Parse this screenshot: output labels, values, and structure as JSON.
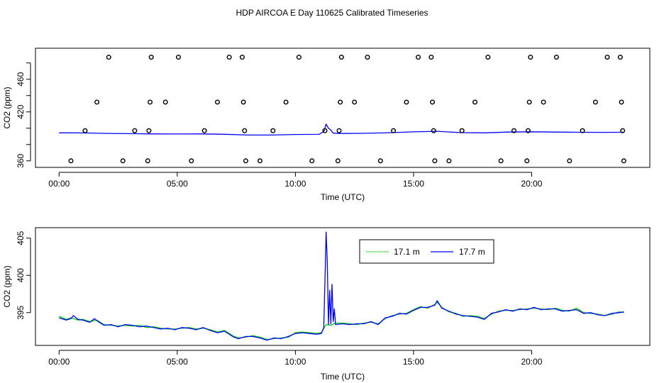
{
  "title": "HDP AIRCOA E  Day 110625  Calibrated Timeseries",
  "chart_data": [
    {
      "type": "scatter",
      "ylabel": "CO2 (ppm)",
      "xlabel": "Time (UTC)",
      "xlim": [
        -1,
        25
      ],
      "ylim": [
        352,
        498
      ],
      "x_ticks": [
        0,
        5,
        10,
        15,
        20
      ],
      "x_tick_labels": [
        "00:00",
        "05:00",
        "10:00",
        "15:00",
        "20:00"
      ],
      "y_ticks": [
        360,
        380,
        400,
        420,
        440,
        460,
        480
      ],
      "y_tick_labels": [
        "360",
        "",
        "",
        "420",
        "",
        "460",
        ""
      ],
      "calibration_points": [
        {
          "x": 0.5,
          "y": 360
        },
        {
          "x": 1.1,
          "y": 397
        },
        {
          "x": 1.6,
          "y": 432
        },
        {
          "x": 2.1,
          "y": 487
        },
        {
          "x": 2.7,
          "y": 360
        },
        {
          "x": 3.2,
          "y": 397
        },
        {
          "x": 3.75,
          "y": 360
        },
        {
          "x": 3.8,
          "y": 397
        },
        {
          "x": 3.85,
          "y": 432
        },
        {
          "x": 3.9,
          "y": 487
        },
        {
          "x": 4.5,
          "y": 432
        },
        {
          "x": 5.05,
          "y": 487
        },
        {
          "x": 5.6,
          "y": 360
        },
        {
          "x": 6.15,
          "y": 397
        },
        {
          "x": 6.7,
          "y": 432
        },
        {
          "x": 7.2,
          "y": 487
        },
        {
          "x": 7.75,
          "y": 487
        },
        {
          "x": 7.8,
          "y": 432
        },
        {
          "x": 7.85,
          "y": 397
        },
        {
          "x": 7.9,
          "y": 360
        },
        {
          "x": 8.5,
          "y": 360
        },
        {
          "x": 9.05,
          "y": 397
        },
        {
          "x": 9.6,
          "y": 432
        },
        {
          "x": 10.15,
          "y": 487
        },
        {
          "x": 10.7,
          "y": 360
        },
        {
          "x": 11.25,
          "y": 397
        },
        {
          "x": 11.8,
          "y": 360
        },
        {
          "x": 11.85,
          "y": 397
        },
        {
          "x": 11.9,
          "y": 432
        },
        {
          "x": 11.95,
          "y": 487
        },
        {
          "x": 12.5,
          "y": 432
        },
        {
          "x": 13.05,
          "y": 487
        },
        {
          "x": 13.6,
          "y": 360
        },
        {
          "x": 14.15,
          "y": 397
        },
        {
          "x": 14.7,
          "y": 432
        },
        {
          "x": 15.2,
          "y": 487
        },
        {
          "x": 15.75,
          "y": 487
        },
        {
          "x": 15.8,
          "y": 432
        },
        {
          "x": 15.85,
          "y": 397
        },
        {
          "x": 15.9,
          "y": 360
        },
        {
          "x": 16.5,
          "y": 360
        },
        {
          "x": 17.05,
          "y": 397
        },
        {
          "x": 17.6,
          "y": 432
        },
        {
          "x": 18.15,
          "y": 487
        },
        {
          "x": 18.7,
          "y": 360
        },
        {
          "x": 19.25,
          "y": 397
        },
        {
          "x": 19.8,
          "y": 360
        },
        {
          "x": 19.85,
          "y": 397
        },
        {
          "x": 19.9,
          "y": 432
        },
        {
          "x": 19.95,
          "y": 487
        },
        {
          "x": 20.5,
          "y": 432
        },
        {
          "x": 21.05,
          "y": 487
        },
        {
          "x": 21.6,
          "y": 360
        },
        {
          "x": 22.15,
          "y": 397
        },
        {
          "x": 22.7,
          "y": 432
        },
        {
          "x": 23.2,
          "y": 487
        },
        {
          "x": 23.75,
          "y": 487
        },
        {
          "x": 23.8,
          "y": 432
        },
        {
          "x": 23.85,
          "y": 397
        },
        {
          "x": 23.9,
          "y": 360
        }
      ],
      "series": [
        {
          "values": [
            [
              0,
              394.3
            ],
            [
              1,
              394.2
            ],
            [
              2,
              393.6
            ],
            [
              3,
              393.4
            ],
            [
              4,
              393.0
            ],
            [
              5,
              392.9
            ],
            [
              6,
              393.0
            ],
            [
              7,
              392.6
            ],
            [
              8,
              391.6
            ],
            [
              9,
              391.6
            ],
            [
              10,
              392.3
            ],
            [
              11,
              392.5
            ],
            [
              11.2,
              396
            ],
            [
              11.3,
              405
            ],
            [
              11.4,
              400
            ],
            [
              11.5,
              398
            ],
            [
              11.6,
              394
            ],
            [
              11.8,
              393.6
            ],
            [
              12,
              393.5
            ],
            [
              13,
              393.8
            ],
            [
              14,
              394.5
            ],
            [
              15,
              395.5
            ],
            [
              16,
              396.2
            ],
            [
              17,
              394.6
            ],
            [
              18,
              394.3
            ],
            [
              19,
              395.3
            ],
            [
              20,
              395.6
            ],
            [
              21,
              395.3
            ],
            [
              22,
              395.0
            ],
            [
              23,
              394.9
            ],
            [
              23.9,
              395.0
            ]
          ],
          "color": "#0000ff"
        }
      ]
    },
    {
      "type": "line",
      "ylabel": "CO2 (ppm)",
      "xlabel": "Time (UTC)",
      "xlim": [
        -1,
        25
      ],
      "ylim": [
        390.6,
        406.4
      ],
      "x_ticks": [
        0,
        5,
        10,
        15,
        20
      ],
      "x_tick_labels": [
        "00:00",
        "05:00",
        "10:00",
        "15:00",
        "20:00"
      ],
      "y_ticks": [
        395,
        400,
        405
      ],
      "y_tick_labels": [
        "395",
        "400",
        "405"
      ],
      "legend": {
        "placement": "top-center"
      },
      "series": [
        {
          "name": "17.1 m",
          "color": "#00cc00",
          "values": [
            [
              0,
              394.5
            ],
            [
              0.3,
              394.1
            ],
            [
              0.5,
              394.3
            ],
            [
              0.8,
              394.0
            ],
            [
              1.0,
              394.1
            ],
            [
              1.3,
              393.8
            ],
            [
              1.6,
              394.0
            ],
            [
              1.9,
              393.4
            ],
            [
              2.2,
              393.3
            ],
            [
              2.5,
              393.2
            ],
            [
              2.8,
              393.3
            ],
            [
              3.1,
              393.2
            ],
            [
              3.4,
              393.3
            ],
            [
              3.7,
              393.0
            ],
            [
              4.0,
              393.1
            ],
            [
              4.3,
              392.9
            ],
            [
              4.6,
              392.8
            ],
            [
              4.9,
              392.8
            ],
            [
              5.2,
              392.9
            ],
            [
              5.5,
              393.0
            ],
            [
              5.8,
              392.8
            ],
            [
              6.1,
              392.9
            ],
            [
              6.4,
              392.7
            ],
            [
              6.7,
              392.4
            ],
            [
              7.0,
              392.6
            ],
            [
              7.2,
              392.2
            ],
            [
              7.4,
              391.8
            ],
            [
              7.6,
              391.6
            ],
            [
              7.9,
              391.7
            ],
            [
              8.2,
              391.9
            ],
            [
              8.5,
              391.7
            ],
            [
              8.8,
              391.4
            ],
            [
              9.1,
              391.5
            ],
            [
              9.4,
              391.6
            ],
            [
              9.7,
              391.7
            ],
            [
              10.0,
              392.3
            ],
            [
              10.3,
              392.4
            ],
            [
              10.6,
              392.3
            ],
            [
              10.9,
              392.2
            ],
            [
              11.1,
              392.3
            ],
            [
              11.3,
              393.4
            ],
            [
              11.5,
              393.3
            ],
            [
              11.7,
              393.6
            ],
            [
              12.0,
              393.6
            ],
            [
              12.3,
              393.5
            ],
            [
              12.6,
              393.4
            ],
            [
              12.9,
              393.6
            ],
            [
              13.2,
              393.7
            ],
            [
              13.5,
              393.5
            ],
            [
              13.8,
              394.2
            ],
            [
              14.1,
              394.6
            ],
            [
              14.4,
              394.8
            ],
            [
              14.7,
              394.9
            ],
            [
              15.0,
              395.4
            ],
            [
              15.3,
              395.8
            ],
            [
              15.6,
              395.6
            ],
            [
              15.9,
              396.1
            ],
            [
              16.0,
              396.4
            ],
            [
              16.2,
              395.7
            ],
            [
              16.5,
              395.1
            ],
            [
              16.8,
              394.9
            ],
            [
              17.1,
              394.5
            ],
            [
              17.4,
              394.6
            ],
            [
              17.7,
              394.5
            ],
            [
              18.0,
              394.2
            ],
            [
              18.3,
              394.8
            ],
            [
              18.6,
              395.2
            ],
            [
              18.9,
              395.3
            ],
            [
              19.2,
              395.3
            ],
            [
              19.5,
              395.4
            ],
            [
              19.8,
              395.5
            ],
            [
              20.1,
              395.6
            ],
            [
              20.4,
              395.5
            ],
            [
              20.7,
              395.4
            ],
            [
              21.0,
              395.6
            ],
            [
              21.3,
              395.3
            ],
            [
              21.6,
              395.2
            ],
            [
              21.9,
              395.6
            ],
            [
              22.2,
              395.0
            ],
            [
              22.5,
              394.9
            ],
            [
              22.8,
              394.8
            ],
            [
              23.1,
              394.6
            ],
            [
              23.4,
              394.8
            ],
            [
              23.7,
              395.1
            ],
            [
              23.9,
              395.0
            ]
          ]
        },
        {
          "name": "17.7 m",
          "color": "#0000ff",
          "values": [
            [
              0,
              394.3
            ],
            [
              0.3,
              394.0
            ],
            [
              0.5,
              394.2
            ],
            [
              0.6,
              394.6
            ],
            [
              0.8,
              394.1
            ],
            [
              1.0,
              394.0
            ],
            [
              1.3,
              393.7
            ],
            [
              1.5,
              394.2
            ],
            [
              1.6,
              393.9
            ],
            [
              1.9,
              393.3
            ],
            [
              2.2,
              393.4
            ],
            [
              2.5,
              393.1
            ],
            [
              2.8,
              393.4
            ],
            [
              3.1,
              393.3
            ],
            [
              3.4,
              393.1
            ],
            [
              3.7,
              393.2
            ],
            [
              4.0,
              393.0
            ],
            [
              4.3,
              392.8
            ],
            [
              4.6,
              392.9
            ],
            [
              4.9,
              392.7
            ],
            [
              5.2,
              393.0
            ],
            [
              5.5,
              392.9
            ],
            [
              5.8,
              392.7
            ],
            [
              6.1,
              393.0
            ],
            [
              6.4,
              392.6
            ],
            [
              6.7,
              392.3
            ],
            [
              7.0,
              392.5
            ],
            [
              7.2,
              392.1
            ],
            [
              7.4,
              391.7
            ],
            [
              7.6,
              391.5
            ],
            [
              7.9,
              391.8
            ],
            [
              8.2,
              391.8
            ],
            [
              8.5,
              391.6
            ],
            [
              8.8,
              391.3
            ],
            [
              9.1,
              391.6
            ],
            [
              9.4,
              391.5
            ],
            [
              9.7,
              391.8
            ],
            [
              10.0,
              392.2
            ],
            [
              10.3,
              392.3
            ],
            [
              10.6,
              392.2
            ],
            [
              10.9,
              392.1
            ],
            [
              11.1,
              392.2
            ],
            [
              11.2,
              393.0
            ],
            [
              11.25,
              399.0
            ],
            [
              11.3,
              405.8
            ],
            [
              11.35,
              402.0
            ],
            [
              11.4,
              393.4
            ],
            [
              11.45,
              398.0
            ],
            [
              11.5,
              393.5
            ],
            [
              11.55,
              398.8
            ],
            [
              11.6,
              393.8
            ],
            [
              11.65,
              395.5
            ],
            [
              11.7,
              393.4
            ],
            [
              12.0,
              393.5
            ],
            [
              12.3,
              393.4
            ],
            [
              12.6,
              393.5
            ],
            [
              12.9,
              393.5
            ],
            [
              13.2,
              393.8
            ],
            [
              13.5,
              393.4
            ],
            [
              13.8,
              394.3
            ],
            [
              14.1,
              394.5
            ],
            [
              14.4,
              394.9
            ],
            [
              14.7,
              394.8
            ],
            [
              15.0,
              395.3
            ],
            [
              15.3,
              395.7
            ],
            [
              15.6,
              395.7
            ],
            [
              15.9,
              396.0
            ],
            [
              16.0,
              396.6
            ],
            [
              16.2,
              395.6
            ],
            [
              16.5,
              395.2
            ],
            [
              16.8,
              394.8
            ],
            [
              17.1,
              394.6
            ],
            [
              17.4,
              394.5
            ],
            [
              17.7,
              394.4
            ],
            [
              18.0,
              394.1
            ],
            [
              18.3,
              394.9
            ],
            [
              18.6,
              395.1
            ],
            [
              18.9,
              395.4
            ],
            [
              19.2,
              395.2
            ],
            [
              19.5,
              395.5
            ],
            [
              19.8,
              395.4
            ],
            [
              20.1,
              395.7
            ],
            [
              20.4,
              395.4
            ],
            [
              20.7,
              395.5
            ],
            [
              21.0,
              395.5
            ],
            [
              21.3,
              395.2
            ],
            [
              21.6,
              395.3
            ],
            [
              21.9,
              395.4
            ],
            [
              22.2,
              394.9
            ],
            [
              22.5,
              395.0
            ],
            [
              22.8,
              394.7
            ],
            [
              23.1,
              394.6
            ],
            [
              23.4,
              394.9
            ],
            [
              23.7,
              395.0
            ],
            [
              23.9,
              395.1
            ]
          ]
        }
      ]
    }
  ]
}
